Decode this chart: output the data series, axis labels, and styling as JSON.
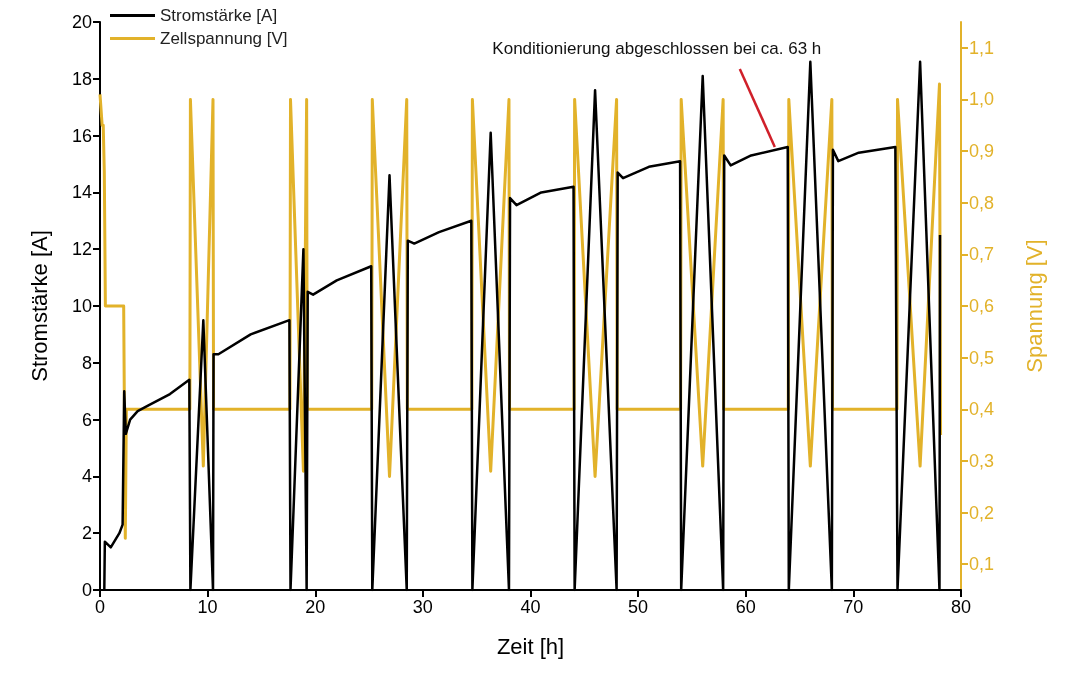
{
  "chart_data": {
    "type": "line",
    "xlabel": "Zeit [h]",
    "ylabel": "Stromstärke [A]",
    "y2label": "Spannung [V]",
    "xlim": [
      0,
      80
    ],
    "xticks": [
      0,
      10,
      20,
      30,
      40,
      50,
      60,
      70,
      80
    ],
    "ylim": [
      0,
      20
    ],
    "yticks": [
      0,
      2,
      4,
      6,
      8,
      10,
      12,
      14,
      16,
      18,
      20
    ],
    "y2lim": [
      0.05,
      1.15
    ],
    "y2ticks": [
      {
        "value": 0.1,
        "label": "0,1"
      },
      {
        "value": 0.2,
        "label": "0,2"
      },
      {
        "value": 0.3,
        "label": "0,3"
      },
      {
        "value": 0.4,
        "label": "0,4"
      },
      {
        "value": 0.5,
        "label": "0,5"
      },
      {
        "value": 0.6,
        "label": "0,6"
      },
      {
        "value": 0.7,
        "label": "0,7"
      },
      {
        "value": 0.8,
        "label": "0,8"
      },
      {
        "value": 0.9,
        "label": "0,9"
      },
      {
        "value": 1.0,
        "label": "1,0"
      },
      {
        "value": 1.1,
        "label": "1,1"
      }
    ],
    "legend": "top left",
    "grid": false,
    "marker": "none",
    "line_style": "solid",
    "annotations": [
      {
        "text": "Konditionierung abgeschlossen bei ca. 63 h",
        "x": 62.7,
        "y": 15.6
      }
    ],
    "series": [
      {
        "name": "Stromstärke [A]",
        "color": "#000000",
        "x": [
          0.4,
          0.45,
          1.0,
          1.8,
          2.1,
          2.25,
          2.4,
          2.8,
          3.5,
          4.5,
          6.5,
          8.3,
          8.4,
          9.6,
          10.5,
          10.55,
          11,
          14,
          17.6,
          17.7,
          18.9,
          19.2,
          19.3,
          19.8,
          22,
          25.2,
          25.3,
          26.9,
          28.5,
          28.6,
          29.2,
          31.5,
          34.5,
          34.6,
          36.3,
          38.0,
          38.1,
          38.7,
          41,
          44.0,
          44.1,
          46.0,
          48.0,
          48.1,
          48.6,
          51,
          53.9,
          54.0,
          56.0,
          57.9,
          58.0,
          58.6,
          60.5,
          63.9,
          64.0,
          66.0,
          68.0,
          68.1,
          68.6,
          70.5,
          73.9,
          74.1,
          76.2,
          78.0,
          78.05
        ],
        "values": [
          0,
          1.7,
          1.5,
          2.0,
          2.3,
          7.0,
          5.5,
          6.0,
          6.3,
          6.5,
          6.9,
          7.4,
          0,
          9.5,
          0,
          8.3,
          8.3,
          9.0,
          9.5,
          0,
          12.0,
          0,
          10.5,
          10.4,
          10.9,
          11.4,
          0,
          14.6,
          0,
          12.3,
          12.2,
          12.6,
          13.0,
          0,
          16.1,
          0,
          13.8,
          13.55,
          14.0,
          14.2,
          0,
          17.6,
          0,
          14.7,
          14.5,
          14.9,
          15.1,
          0,
          18.1,
          0,
          15.3,
          14.95,
          15.3,
          15.6,
          0,
          18.6,
          0,
          15.5,
          15.1,
          15.4,
          15.6,
          0,
          18.6,
          0,
          12.5
        ]
      },
      {
        "name": "Zellspannung [V]",
        "color": "#e2b22a",
        "axis": "y2",
        "x": [
          0,
          0.2,
          0.3,
          0.4,
          0.5,
          2.2,
          2.35,
          2.45,
          8.35,
          8.4,
          9.6,
          10.5,
          10.55,
          17.65,
          17.7,
          18.9,
          19.2,
          19.25,
          25.25,
          25.3,
          26.9,
          28.5,
          28.55,
          34.55,
          34.6,
          36.3,
          38.0,
          38.05,
          44.05,
          44.1,
          46.0,
          48.0,
          48.05,
          53.95,
          54.0,
          56.0,
          57.9,
          57.95,
          63.95,
          64.0,
          66.0,
          68.0,
          68.05,
          74.05,
          74.1,
          76.2,
          78.0,
          78.1
        ],
        "values": [
          1.01,
          0.95,
          0.95,
          0.86,
          0.6,
          0.6,
          0.15,
          0.4,
          0.4,
          1.0,
          0.29,
          1.0,
          0.4,
          0.4,
          1.0,
          0.28,
          1.0,
          0.4,
          0.4,
          1.0,
          0.27,
          1.0,
          0.4,
          0.4,
          1.0,
          0.28,
          1.0,
          0.4,
          0.4,
          1.0,
          0.27,
          1.0,
          0.4,
          0.4,
          1.0,
          0.29,
          1.0,
          0.4,
          0.4,
          1.0,
          0.29,
          1.0,
          0.4,
          0.4,
          1.0,
          0.29,
          1.03,
          0.35
        ]
      }
    ]
  }
}
